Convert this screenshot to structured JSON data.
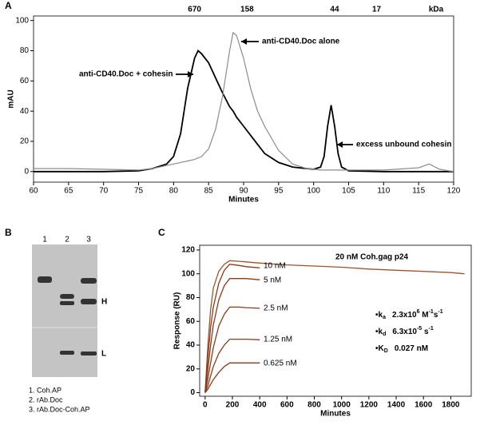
{
  "chart_data": [
    {
      "type": "line",
      "panel": "A",
      "ylabel": "mAU",
      "xlabel": "Minutes",
      "xlim": [
        60,
        120
      ],
      "xticks": [
        60,
        65,
        70,
        75,
        80,
        85,
        90,
        95,
        100,
        105,
        110,
        115,
        120
      ],
      "ylim": [
        -7,
        103
      ],
      "yticks": [
        0,
        20,
        40,
        60,
        80,
        100
      ],
      "x2ticks": [
        {
          "value": 83,
          "label": "670"
        },
        {
          "value": 90.5,
          "label": "158"
        },
        {
          "value": 103,
          "label": "44"
        },
        {
          "value": 109,
          "label": "17"
        }
      ],
      "x2label": "kDa",
      "x": [
        60,
        65,
        70,
        75,
        77,
        79,
        80,
        81,
        82,
        83,
        83.5,
        84,
        85,
        86,
        87,
        88,
        88.5,
        89,
        90,
        91,
        92,
        93,
        95,
        97,
        99,
        100,
        101,
        101.5,
        102,
        102.5,
        103,
        103.5,
        104,
        105,
        110,
        115,
        116.5,
        118,
        120
      ],
      "series": [
        {
          "name": "anti-CD40.Doc + cohesin",
          "color": "#000000",
          "values": [
            0,
            0,
            0,
            0.5,
            2,
            5,
            10,
            25,
            55,
            75,
            80,
            78,
            72,
            62,
            52,
            43,
            40,
            36,
            30,
            24,
            18,
            12,
            6,
            3,
            2,
            1.5,
            3,
            10,
            30,
            44,
            30,
            12,
            3,
            0.5,
            0,
            0,
            0,
            0,
            0
          ]
        },
        {
          "name": "anti-CD40.Doc alone",
          "color": "#8c8c8c",
          "values": [
            2,
            2,
            1.5,
            1,
            2,
            4,
            5,
            6,
            7,
            8,
            9,
            10,
            15,
            28,
            50,
            80,
            92,
            90,
            75,
            55,
            40,
            30,
            14,
            5,
            2,
            1.5,
            1,
            1,
            1,
            1,
            1,
            1,
            1,
            1,
            1,
            2.5,
            5,
            1.5,
            0
          ]
        }
      ],
      "annotations": [
        "excess unbound cohesin"
      ]
    },
    {
      "type": "line",
      "panel": "C",
      "ylabel": "Response (RU)",
      "xlabel": "Minutes",
      "xlim": [
        -40,
        1950
      ],
      "xticks": [
        0,
        200,
        400,
        600,
        800,
        1000,
        1200,
        1400,
        1600,
        1800
      ],
      "ylim": [
        -3,
        124
      ],
      "yticks": [
        0,
        20,
        40,
        60,
        80,
        100,
        120
      ],
      "x": [
        0,
        20,
        40,
        60,
        100,
        140,
        180,
        250,
        300,
        400,
        600,
        800,
        1000,
        1200,
        1400,
        1600,
        1800,
        1900
      ],
      "series": [
        {
          "name": "20 nM Coh.gag p24",
          "color": "#a0522d",
          "values": [
            0,
            40,
            70,
            88,
            102,
            108,
            111,
            110.5,
            110,
            109,
            107.5,
            106.5,
            105.5,
            104,
            103,
            102,
            101,
            100
          ]
        },
        {
          "name": "10 nM",
          "color": "#8b3a1a",
          "values": [
            0,
            30,
            55,
            72,
            92,
            103,
            108,
            107,
            106,
            105,
            null,
            null,
            null,
            null,
            null,
            null,
            null,
            null
          ]
        },
        {
          "name": "5 nM",
          "color": "#8b3a1a",
          "values": [
            0,
            20,
            40,
            57,
            78,
            90,
            96,
            96,
            96,
            95,
            null,
            null,
            null,
            null,
            null,
            null,
            null,
            null
          ]
        },
        {
          "name": "2.5 nM",
          "color": "#8b3a1a",
          "values": [
            0,
            12,
            25,
            38,
            56,
            66,
            72,
            72,
            71.5,
            71,
            null,
            null,
            null,
            null,
            null,
            null,
            null,
            null
          ]
        },
        {
          "name": "1.25 nM",
          "color": "#8b3a1a",
          "values": [
            0,
            6,
            14,
            22,
            33,
            40,
            45,
            45,
            45,
            44.5,
            null,
            null,
            null,
            null,
            null,
            null,
            null,
            null
          ]
        },
        {
          "name": "0.625 nM",
          "color": "#8b3a1a",
          "values": [
            0,
            3,
            7,
            11,
            17,
            22,
            25,
            25,
            25,
            25,
            null,
            null,
            null,
            null,
            null,
            null,
            null,
            null
          ]
        }
      ],
      "kinetics": [
        {
          "bullet": "•",
          "symbol": "k",
          "sub": "a",
          "value": "2.3x10",
          "exp": "6",
          "unit": " M",
          "unit_exp": "-1",
          "unit2": "s",
          "unit2_exp": "-1"
        },
        {
          "bullet": "•",
          "symbol": "k",
          "sub": "d",
          "value": "6.3x10",
          "exp": "-5",
          "unit": " s",
          "unit_exp": "-1"
        },
        {
          "bullet": "•",
          "symbol": "K",
          "sub": "D",
          "value": "0.027 nM"
        }
      ]
    }
  ],
  "gel": {
    "panel": "B",
    "lanes": [
      "1",
      "2",
      "3"
    ],
    "bands": [
      "H",
      "L"
    ],
    "legend": [
      "1. Coh.AP",
      "2. rAb.Doc",
      "3. rAb.Doc-Coh.AP"
    ]
  }
}
